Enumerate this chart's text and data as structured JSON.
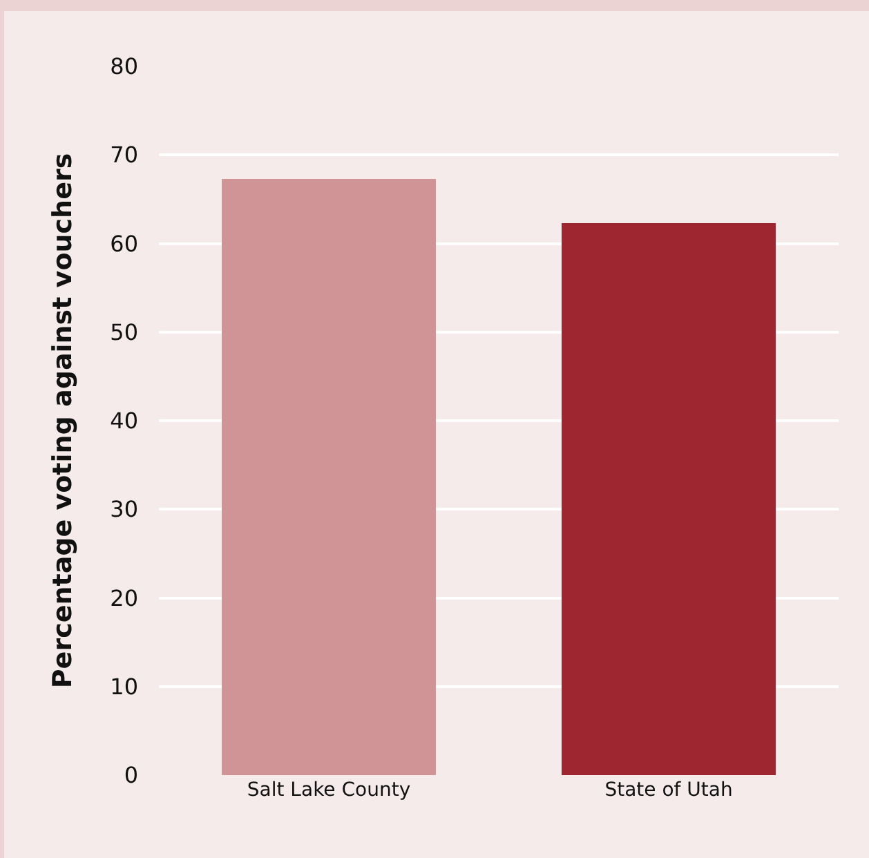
{
  "chart_data": {
    "type": "bar",
    "ylabel": "Percentage voting against vouchers",
    "categories": [
      "Salt Lake County",
      "State of Utah"
    ],
    "values": [
      67.3,
      62.3
    ],
    "colors": [
      "#d09497",
      "#9e2631"
    ],
    "ylim": [
      0,
      80
    ],
    "yticks": [
      0,
      10,
      20,
      30,
      40,
      50,
      60,
      70,
      80
    ],
    "grid": "y"
  }
}
